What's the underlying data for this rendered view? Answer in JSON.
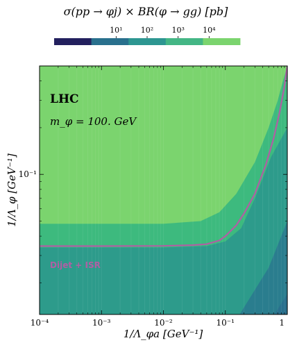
{
  "chart_data": {
    "type": "heatmap",
    "title": "σ(pp → φj) × BR(φ → gg) [pb]",
    "xlabel": "1/Λ_φa [GeV⁻¹]",
    "ylabel": "1/Λ_φ [GeV⁻¹]",
    "xscale": "log",
    "yscale": "log",
    "xlim": [
      0.0001,
      1
    ],
    "ylim": [
      0.0125,
      0.5
    ],
    "x_tick_labels": [
      "10⁻⁴",
      "10⁻³",
      "10⁻²",
      "10⁻¹",
      "1"
    ],
    "y_tick_labels": [
      "10⁻¹"
    ],
    "y_tick_values": [
      0.1
    ],
    "colorbar": {
      "orientation": "horizontal",
      "placement": "top",
      "scale": "log",
      "range": [
        0.1,
        100000
      ],
      "tick_labels": [
        "10¹",
        "10²",
        "10³",
        "10⁴"
      ],
      "tick_values": [
        10,
        100,
        1000,
        10000
      ],
      "colors": [
        "#23205e",
        "#29708d",
        "#2d9691",
        "#44b685",
        "#7bd46e"
      ]
    },
    "annotations": {
      "collider": "LHC",
      "mass": "m_φ = 100. GeV",
      "curve_label": "Dijet + ISR"
    },
    "regions": [
      {
        "level_upper": 1000,
        "color": "#2a7d8e",
        "boundary": {
          "x": [
            0.17,
            0.5,
            1.0
          ],
          "y": [
            0.0125,
            0.025,
            0.05
          ]
        }
      },
      {
        "level_upper": 10000,
        "color": "#2d9b8b",
        "boundary": {
          "x": [
            0.0001,
            0.01,
            0.05,
            0.1,
            0.18,
            0.3,
            0.55,
            1.0
          ],
          "y": [
            0.0338,
            0.0338,
            0.0345,
            0.037,
            0.045,
            0.07,
            0.13,
            0.2
          ]
        }
      },
      {
        "level_upper": 100000,
        "color": "#3dba7e",
        "boundary": {
          "x": [
            0.0001,
            0.01,
            0.04,
            0.08,
            0.15,
            0.3,
            0.5,
            0.7,
            0.85,
            1.0
          ],
          "y": [
            0.048,
            0.048,
            0.05,
            0.057,
            0.075,
            0.12,
            0.2,
            0.3,
            0.4,
            0.5
          ]
        }
      }
    ],
    "exclusion_curve": {
      "name": "Dijet + ISR",
      "color": "#b05fa4",
      "x": [
        0.0001,
        0.001,
        0.01,
        0.03,
        0.05,
        0.08,
        0.1,
        0.15,
        0.2,
        0.3,
        0.45,
        0.6,
        0.75,
        0.9,
        1.0
      ],
      "y": [
        0.0345,
        0.0345,
        0.0346,
        0.035,
        0.0355,
        0.0375,
        0.04,
        0.047,
        0.056,
        0.075,
        0.115,
        0.17,
        0.25,
        0.37,
        0.5
      ]
    }
  }
}
